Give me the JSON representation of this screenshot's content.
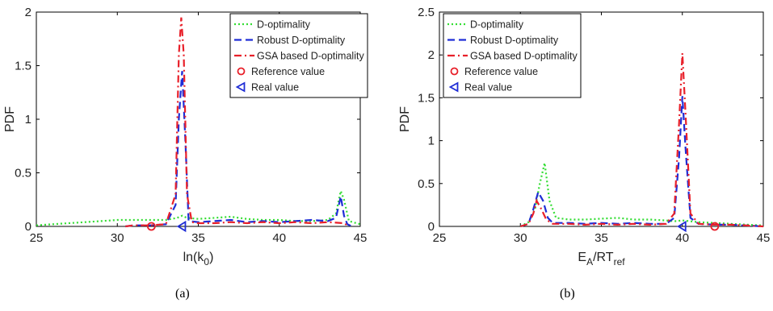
{
  "captions": [
    "(a)",
    "(b)"
  ],
  "colors": {
    "d": "#33dd33",
    "robust": "#1f2dd6",
    "gsa": "#e8202a",
    "ref": "#e8202a",
    "real": "#1f2dd6"
  },
  "legend": [
    "D-optimality",
    "Robust D-optimality",
    "GSA based D-optimality",
    "Reference value",
    "Real value"
  ],
  "chart_data": [
    {
      "type": "line",
      "panel": "a",
      "xlabel": "ln(k",
      "xlabel_sub": "0",
      "xlabel_tail": ")",
      "ylabel": "PDF",
      "xlim": [
        25,
        45
      ],
      "ylim": [
        0,
        2
      ],
      "xticks": [
        "25",
        "30",
        "35",
        "40",
        "45"
      ],
      "yticks": [
        "0",
        "0.5",
        "1",
        "1.5",
        "2"
      ],
      "legend_position": "top-right",
      "series": [
        {
          "name": "D-optimality",
          "style": "dotted",
          "x": [
            25,
            26,
            27,
            28,
            29,
            30,
            31,
            32,
            33,
            33.7,
            34,
            34.3,
            35,
            36,
            37,
            38,
            39,
            40,
            41,
            42,
            43,
            43.5,
            43.8,
            44,
            44.3,
            45
          ],
          "y": [
            0.01,
            0.02,
            0.03,
            0.04,
            0.05,
            0.06,
            0.06,
            0.06,
            0.06,
            0.08,
            0.1,
            0.08,
            0.07,
            0.08,
            0.09,
            0.07,
            0.06,
            0.06,
            0.05,
            0.05,
            0.06,
            0.12,
            0.33,
            0.25,
            0.05,
            0.02
          ]
        },
        {
          "name": "Robust D-optimality",
          "style": "dashed",
          "x": [
            30.5,
            31,
            32,
            33,
            33.6,
            33.8,
            34,
            34.2,
            34.4,
            35,
            36,
            37,
            38,
            39,
            40,
            41,
            42,
            43,
            43.5,
            43.8,
            44,
            44.2,
            44.5
          ],
          "y": [
            0,
            0.01,
            0.01,
            0.02,
            0.2,
            1.0,
            1.45,
            0.8,
            0.05,
            0.04,
            0.05,
            0.06,
            0.04,
            0.05,
            0.04,
            0.05,
            0.06,
            0.05,
            0.08,
            0.28,
            0.1,
            0.02,
            0
          ]
        },
        {
          "name": "GSA based D-optimality",
          "style": "dashdot",
          "x": [
            30.5,
            31,
            32,
            33,
            33.6,
            33.8,
            33.95,
            34.1,
            34.3,
            34.6,
            35,
            36,
            37,
            38,
            39,
            40,
            41,
            42,
            43,
            44,
            44.3
          ],
          "y": [
            0,
            0.01,
            0.01,
            0.02,
            0.3,
            1.6,
            1.95,
            1.6,
            0.3,
            0.04,
            0.03,
            0.03,
            0.04,
            0.03,
            0.04,
            0.03,
            0.04,
            0.03,
            0.04,
            0.03,
            0
          ]
        }
      ],
      "markers": [
        {
          "name": "Reference value",
          "shape": "circle",
          "x": 32.1,
          "y": 0
        },
        {
          "name": "Real value",
          "shape": "triangle",
          "x": 34,
          "y": 0
        }
      ]
    },
    {
      "type": "line",
      "panel": "b",
      "xlabel": "E",
      "xlabel_sub": "A",
      "xlabel_mid": "/RT",
      "xlabel_sub2": "ref",
      "ylabel": "PDF",
      "xlim": [
        25,
        45
      ],
      "ylim": [
        0,
        2.5
      ],
      "xticks": [
        "25",
        "30",
        "35",
        "40",
        "45"
      ],
      "yticks": [
        "0",
        "0.5",
        "1",
        "1.5",
        "2",
        "2.5"
      ],
      "legend_position": "top-left",
      "series": [
        {
          "name": "D-optimality",
          "style": "dotted",
          "x": [
            30,
            30.5,
            30.9,
            31.2,
            31.5,
            31.8,
            32.2,
            33,
            34,
            35,
            36,
            37,
            38,
            39,
            39.5,
            40,
            40.5,
            41,
            42,
            43,
            44,
            45
          ],
          "y": [
            0,
            0.05,
            0.2,
            0.5,
            0.74,
            0.3,
            0.1,
            0.08,
            0.08,
            0.09,
            0.1,
            0.08,
            0.08,
            0.07,
            0.06,
            0.07,
            0.06,
            0.05,
            0.04,
            0.03,
            0.02,
            0.01
          ]
        },
        {
          "name": "Robust D-optimality",
          "style": "dashed",
          "x": [
            30,
            30.5,
            30.8,
            31.1,
            31.4,
            31.7,
            32,
            33,
            34,
            35,
            36,
            37,
            38,
            39,
            39.5,
            39.8,
            40,
            40.2,
            40.5,
            41,
            42,
            43,
            44,
            45
          ],
          "y": [
            0,
            0.03,
            0.2,
            0.4,
            0.3,
            0.1,
            0.04,
            0.04,
            0.03,
            0.04,
            0.03,
            0.04,
            0.03,
            0.03,
            0.1,
            0.8,
            1.52,
            0.9,
            0.1,
            0.03,
            0.02,
            0.02,
            0.01,
            0
          ]
        },
        {
          "name": "GSA based D-optimality",
          "style": "dashdot",
          "x": [
            30,
            30.5,
            30.8,
            31,
            31.3,
            31.6,
            32,
            33,
            34,
            35,
            36,
            37,
            38,
            39,
            39.5,
            39.8,
            40,
            40.2,
            40.5,
            41,
            42,
            43,
            44,
            45
          ],
          "y": [
            0,
            0.03,
            0.15,
            0.3,
            0.2,
            0.08,
            0.03,
            0.03,
            0.02,
            0.03,
            0.02,
            0.03,
            0.02,
            0.03,
            0.15,
            1.2,
            2.02,
            1.3,
            0.15,
            0.03,
            0.02,
            0.02,
            0.01,
            0
          ]
        }
      ],
      "markers": [
        {
          "name": "Reference value",
          "shape": "circle",
          "x": 42,
          "y": 0
        },
        {
          "name": "Real value",
          "shape": "triangle",
          "x": 40,
          "y": 0
        }
      ]
    }
  ]
}
